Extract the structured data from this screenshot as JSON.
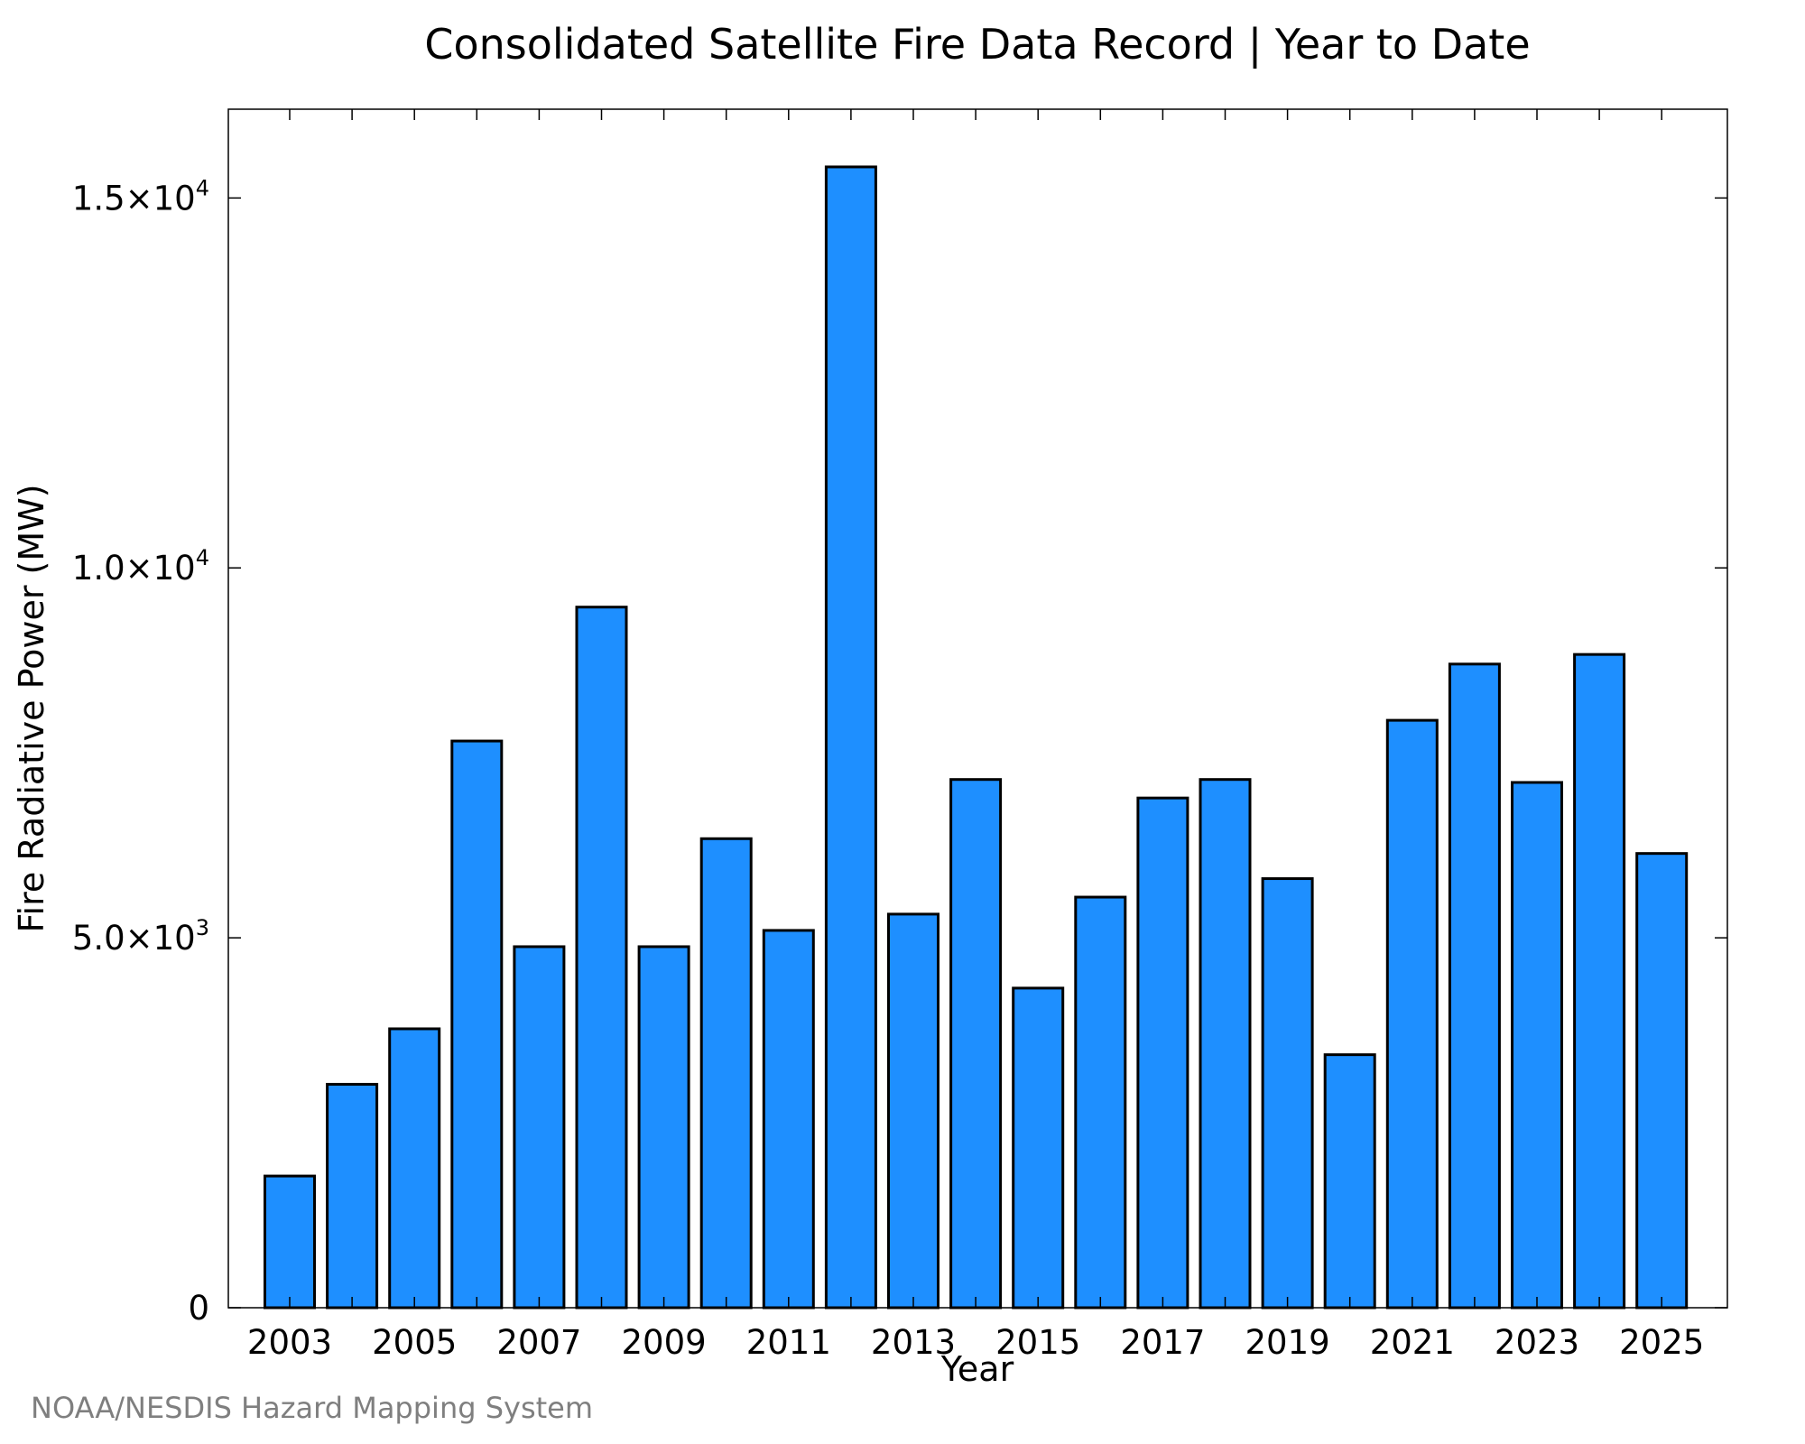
{
  "chart_data": {
    "type": "bar",
    "title": "Consolidated Satellite Fire Data Record | Year to Date",
    "xlabel": "Year",
    "ylabel": "Fire Radiative Power (MW)",
    "categories": [
      "2003",
      "2004",
      "2005",
      "2006",
      "2007",
      "2008",
      "2009",
      "2010",
      "2011",
      "2012",
      "2013",
      "2014",
      "2015",
      "2016",
      "2017",
      "2018",
      "2019",
      "2020",
      "2021",
      "2022",
      "2023",
      "2024",
      "2025"
    ],
    "values": [
      1780,
      3020,
      3770,
      7660,
      4880,
      9470,
      4880,
      6340,
      5100,
      15420,
      5320,
      7140,
      4320,
      5550,
      6890,
      7140,
      5800,
      3420,
      7940,
      8700,
      7100,
      8830,
      6140
    ],
    "x_tick_labels": [
      "2003",
      "2005",
      "2007",
      "2009",
      "2011",
      "2013",
      "2015",
      "2017",
      "2019",
      "2021",
      "2023",
      "2025"
    ],
    "y_ticks": [
      {
        "value": 0,
        "mantissa": "0",
        "exponent": ""
      },
      {
        "value": 5000,
        "mantissa": "5.0×10",
        "exponent": "3"
      },
      {
        "value": 10000,
        "mantissa": "1.0×10",
        "exponent": "4"
      },
      {
        "value": 15000,
        "mantissa": "1.5×10",
        "exponent": "4"
      }
    ],
    "ylim": [
      0,
      16200
    ],
    "bar_color": "#1e8fff",
    "grid": false,
    "legend": "none"
  },
  "source_note": "NOAA/NESDIS Hazard Mapping System"
}
